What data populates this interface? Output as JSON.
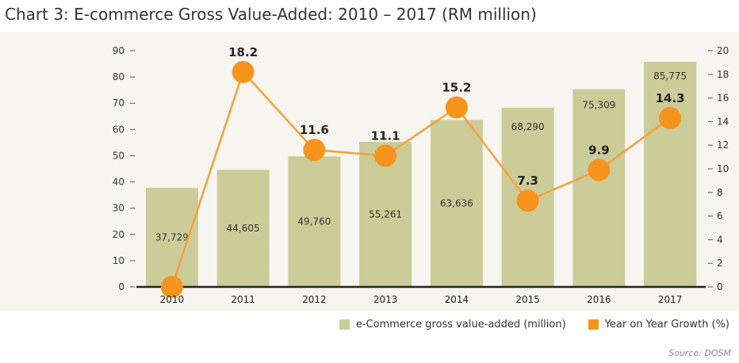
{
  "title": "Chart 3: E-commerce Gross Value-Added: 2010 – 2017 (RM million)",
  "source": "Source: DOSM",
  "colors": {
    "bar": "#cccc99",
    "line": "#f4a13d",
    "marker": "#f7941d",
    "background": "#f6f5f0"
  },
  "chart_data": {
    "type": "bar",
    "categories": [
      "2010",
      "2011",
      "2012",
      "2013",
      "2014",
      "2015",
      "2016",
      "2017"
    ],
    "bar_series": {
      "name": "e-Commerce gross value-added (million)",
      "values": [
        37729,
        44605,
        49760,
        55261,
        63636,
        68290,
        75309,
        85775
      ],
      "labels": [
        "37,729",
        "44,605",
        "49,760",
        "55,261",
        "63,636",
        "68,290",
        "75,309",
        "85,775"
      ]
    },
    "line_series": {
      "name": "Year on Year Growth (%)",
      "values": [
        0,
        18.2,
        11.6,
        11.1,
        15.2,
        7.3,
        9.9,
        14.3
      ],
      "labels": [
        "",
        "18.2",
        "11.6",
        "11.1",
        "15.2",
        "7.3",
        "9.9",
        "14.3"
      ]
    },
    "y_left": {
      "min": 0,
      "max": 90,
      "ticks": [
        "0",
        "10",
        "20",
        "30",
        "40",
        "50",
        "60",
        "70",
        "80",
        "90"
      ]
    },
    "y_right": {
      "min": 0,
      "max": 20,
      "ticks": [
        "0",
        "2",
        "4",
        "6",
        "8",
        "10",
        "12",
        "14",
        "16",
        "18",
        "20"
      ]
    },
    "legend_position": "bottom-right",
    "grid": false
  }
}
